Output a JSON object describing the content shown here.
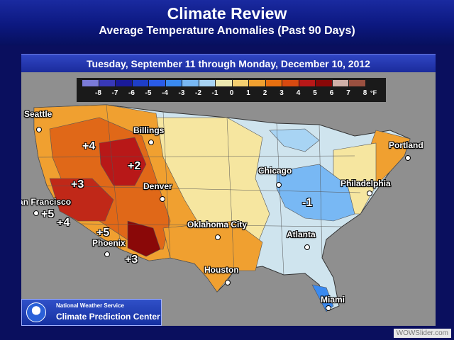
{
  "header": {
    "title": "Climate Review",
    "subtitle": "Average Temperature Anomalies (Past 90 Days)"
  },
  "date_range": "Tuesday, September 11 through Monday, December 10, 2012",
  "legend": {
    "unit": "°F",
    "ticks": [
      "-8",
      "-7",
      "-6",
      "-5",
      "-4",
      "-3",
      "-2",
      "-1",
      "0",
      "1",
      "2",
      "3",
      "4",
      "5",
      "6",
      "7",
      "8"
    ],
    "colors": [
      "#7b7bd8",
      "#3838b8",
      "#1a1a9a",
      "#1e3ec8",
      "#2a5ce8",
      "#3a8af0",
      "#78b8f4",
      "#a8d4f4",
      "#ece8b0",
      "#f4d070",
      "#f0a030",
      "#e87010",
      "#d84a10",
      "#b81818",
      "#8a0808",
      "#d0b0a8",
      "#9a5040"
    ]
  },
  "cities": [
    {
      "name": "Seattle"
    },
    {
      "name": "Billings"
    },
    {
      "name": "Portland"
    },
    {
      "name": "Chicago"
    },
    {
      "name": "Philadelphia"
    },
    {
      "name": "Denver"
    },
    {
      "name": "San Francisco"
    },
    {
      "name": "Oklahoma City"
    },
    {
      "name": "Atlanta"
    },
    {
      "name": "Phoenix"
    },
    {
      "name": "Houston"
    },
    {
      "name": "Miami"
    }
  ],
  "anomaly_labels": [
    "+4",
    "+2",
    "+3",
    "+5",
    "+4",
    "+5",
    "+3",
    "-1"
  ],
  "footer": {
    "agency": "National Weather Service",
    "center": "Climate Prediction Center",
    "watermark": "WOWSlider.com"
  }
}
